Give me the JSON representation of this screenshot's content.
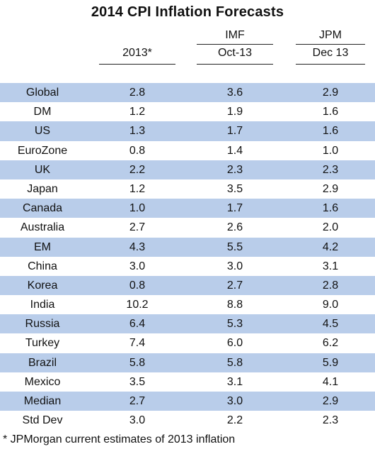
{
  "chart_data": {
    "type": "table",
    "title": "2014 CPI Inflation Forecasts",
    "columns": [
      {
        "group": "",
        "label": "2013*"
      },
      {
        "group": "IMF",
        "label": "Oct-13"
      },
      {
        "group": "JPM",
        "label": "Dec 13"
      }
    ],
    "rows": [
      {
        "label": "Global",
        "values": [
          "2.8",
          "3.6",
          "2.9"
        ],
        "shaded": true
      },
      {
        "label": "DM",
        "values": [
          "1.2",
          "1.9",
          "1.6"
        ],
        "shaded": false
      },
      {
        "label": "US",
        "values": [
          "1.3",
          "1.7",
          "1.6"
        ],
        "shaded": true
      },
      {
        "label": "EuroZone",
        "values": [
          "0.8",
          "1.4",
          "1.0"
        ],
        "shaded": false
      },
      {
        "label": "UK",
        "values": [
          "2.2",
          "2.3",
          "2.3"
        ],
        "shaded": true
      },
      {
        "label": "Japan",
        "values": [
          "1.2",
          "3.5",
          "2.9"
        ],
        "shaded": false
      },
      {
        "label": "Canada",
        "values": [
          "1.0",
          "1.7",
          "1.6"
        ],
        "shaded": true
      },
      {
        "label": "Australia",
        "values": [
          "2.7",
          "2.6",
          "2.0"
        ],
        "shaded": false
      },
      {
        "label": "EM",
        "values": [
          "4.3",
          "5.5",
          "4.2"
        ],
        "shaded": true
      },
      {
        "label": "China",
        "values": [
          "3.0",
          "3.0",
          "3.1"
        ],
        "shaded": false
      },
      {
        "label": "Korea",
        "values": [
          "0.8",
          "2.7",
          "2.8"
        ],
        "shaded": true
      },
      {
        "label": "India",
        "values": [
          "10.2",
          "8.8",
          "9.0"
        ],
        "shaded": false
      },
      {
        "label": "Russia",
        "values": [
          "6.4",
          "5.3",
          "4.5"
        ],
        "shaded": true
      },
      {
        "label": "Turkey",
        "values": [
          "7.4",
          "6.0",
          "6.2"
        ],
        "shaded": false
      },
      {
        "label": "Brazil",
        "values": [
          "5.8",
          "5.8",
          "5.9"
        ],
        "shaded": true
      },
      {
        "label": "Mexico",
        "values": [
          "3.5",
          "3.1",
          "4.1"
        ],
        "shaded": false
      },
      {
        "label": "Median",
        "values": [
          "2.7",
          "3.0",
          "2.9"
        ],
        "shaded": true
      },
      {
        "label": "Std Dev",
        "values": [
          "3.0",
          "2.2",
          "2.3"
        ],
        "shaded": false
      }
    ],
    "footnote": "*  JPMorgan current estimates of 2013 inflation",
    "colors": {
      "shaded_row": "#b9cdea",
      "text": "#111111"
    }
  }
}
